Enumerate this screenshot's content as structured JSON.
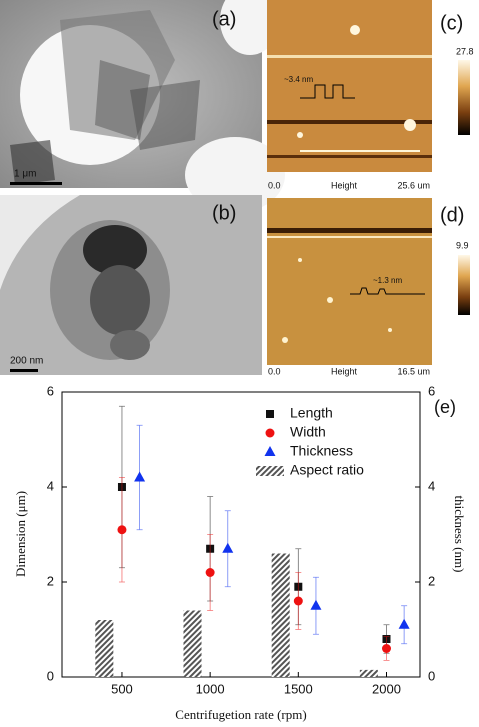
{
  "figure": {
    "tem_a": {
      "label": "(a)",
      "scale_bar": "1 μm"
    },
    "tem_b": {
      "label": "(b)",
      "scale_bar": "200 nm"
    },
    "afm_c": {
      "label": "(c)",
      "x_start": "0.0",
      "channel": "Height",
      "x_end": "25.6 um",
      "colorbar_max": "27.8",
      "profile_step": "~3.4 nm"
    },
    "afm_d": {
      "label": "(d)",
      "x_start": "0.0",
      "channel": "Height",
      "x_end": "16.5 um",
      "colorbar_max": "9.9",
      "profile_step": "~1.3 nm"
    }
  },
  "chart_data": {
    "type": "scatter",
    "panel_label": "(e)",
    "xlabel": "Centrifugetion rate (rpm)",
    "ylabel": "Dimension (μm)",
    "y2label": "thickness (nm)",
    "xlim": [
      160,
      2190
    ],
    "xticks": [
      500,
      1000,
      1500,
      2000
    ],
    "ylim": [
      0,
      6
    ],
    "yticks": [
      0,
      2,
      4,
      6
    ],
    "y2lim": [
      0,
      6
    ],
    "y2ticks": [
      0,
      2,
      4,
      6
    ],
    "legend": "upper right",
    "series": [
      {
        "name": "Length",
        "type": "scatter",
        "marker": "square",
        "color": "#111111",
        "x": [
          500,
          1000,
          1500,
          2000
        ],
        "values": [
          4.0,
          2.7,
          1.9,
          0.8
        ],
        "errors": [
          1.7,
          1.1,
          0.8,
          0.3
        ]
      },
      {
        "name": "Width",
        "type": "scatter",
        "marker": "circle",
        "color": "#ee1111",
        "x": [
          500,
          1000,
          1500,
          2000
        ],
        "values": [
          3.1,
          2.2,
          1.6,
          0.6
        ],
        "errors": [
          1.1,
          0.8,
          0.6,
          0.25
        ]
      },
      {
        "name": "Thickness",
        "type": "scatter",
        "marker": "triangle",
        "color": "#1133ee",
        "axis": "y2",
        "x": [
          600,
          1100,
          1600,
          2100
        ],
        "values": [
          4.2,
          2.7,
          1.5,
          1.1
        ],
        "errors": [
          1.1,
          0.8,
          0.6,
          0.4
        ]
      },
      {
        "name": "Aspect ratio",
        "type": "bar",
        "color": "#555555",
        "x": [
          400,
          900,
          1400,
          1900
        ],
        "values": [
          1.2,
          1.4,
          2.6,
          0.15
        ]
      }
    ]
  }
}
